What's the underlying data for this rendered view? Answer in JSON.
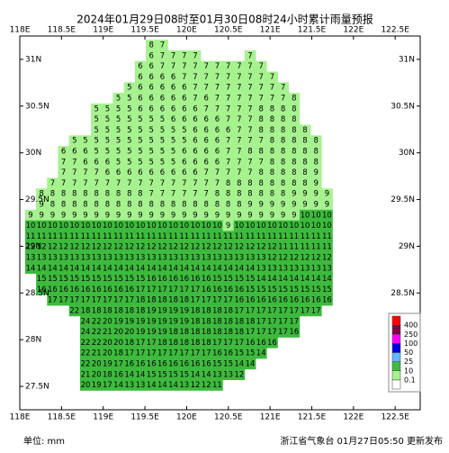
{
  "chart_data": {
    "type": "grid-map",
    "title": "2024年01月29日08时至01月30日08时24小时累计雨量预报",
    "xlim": [
      118,
      122.8
    ],
    "ylim": [
      27.25,
      31.25
    ],
    "xticks": [
      {
        "value": 118,
        "label": "118E"
      },
      {
        "value": 118.5,
        "label": "118.5E"
      },
      {
        "value": 119,
        "label": "119E"
      },
      {
        "value": 119.5,
        "label": "119.5E"
      },
      {
        "value": 120,
        "label": "120E"
      },
      {
        "value": 120.5,
        "label": "120.5E"
      },
      {
        "value": 121,
        "label": "121E"
      },
      {
        "value": 121.5,
        "label": "121.5E"
      },
      {
        "value": 122,
        "label": "122E"
      },
      {
        "value": 122.5,
        "label": "122.5E"
      }
    ],
    "yticks": [
      {
        "value": 27.5,
        "label": "27.5N"
      },
      {
        "value": 28,
        "label": "28N"
      },
      {
        "value": 28.5,
        "label": "28.5N"
      },
      {
        "value": 29,
        "label": "29N"
      },
      {
        "value": 29.5,
        "label": "29.5N"
      },
      {
        "value": 30,
        "label": "30N"
      },
      {
        "value": 30.5,
        "label": "30.5N"
      },
      {
        "value": 31,
        "label": "31N"
      }
    ],
    "rows": [
      [
        null,
        null,
        null,
        null,
        null,
        null,
        null,
        null,
        null,
        null,
        null,
        8,
        7
      ],
      [
        null,
        null,
        null,
        null,
        null,
        null,
        null,
        null,
        null,
        null,
        null,
        6,
        7,
        7,
        7,
        7,
        null,
        null,
        null,
        null,
        7
      ],
      [
        null,
        null,
        null,
        null,
        null,
        null,
        null,
        null,
        null,
        null,
        6,
        6,
        7,
        7,
        7,
        7,
        7,
        7,
        7,
        7,
        7,
        7
      ],
      [
        null,
        null,
        null,
        null,
        null,
        null,
        null,
        null,
        null,
        null,
        6,
        6,
        6,
        6,
        7,
        7,
        7,
        7,
        7,
        7,
        7,
        7,
        7
      ],
      [
        null,
        null,
        null,
        null,
        null,
        null,
        null,
        null,
        null,
        5,
        6,
        6,
        6,
        6,
        6,
        7,
        7,
        7,
        7,
        7,
        7,
        7,
        7,
        7
      ],
      [
        null,
        null,
        null,
        null,
        null,
        null,
        null,
        null,
        5,
        5,
        6,
        6,
        6,
        6,
        6,
        7,
        6,
        7,
        7,
        7,
        7,
        7,
        7,
        7,
        8
      ],
      [
        null,
        null,
        null,
        null,
        null,
        null,
        5,
        5,
        5,
        5,
        6,
        6,
        6,
        6,
        6,
        6,
        7,
        7,
        7,
        7,
        7,
        8,
        8,
        8,
        8
      ],
      [
        null,
        null,
        null,
        null,
        null,
        null,
        5,
        5,
        5,
        5,
        5,
        5,
        5,
        6,
        6,
        6,
        6,
        6,
        7,
        7,
        7,
        8,
        8,
        8,
        8
      ],
      [
        null,
        null,
        null,
        null,
        null,
        null,
        5,
        5,
        5,
        5,
        5,
        5,
        5,
        5,
        5,
        6,
        6,
        6,
        6,
        7,
        7,
        8,
        8,
        8,
        8,
        8
      ],
      [
        null,
        null,
        null,
        null,
        5,
        5,
        5,
        5,
        5,
        5,
        5,
        5,
        5,
        5,
        5,
        6,
        6,
        6,
        7,
        7,
        7,
        7,
        8,
        8,
        8,
        8,
        8
      ],
      [
        null,
        null,
        null,
        6,
        6,
        6,
        5,
        5,
        5,
        5,
        5,
        5,
        5,
        5,
        6,
        6,
        6,
        6,
        7,
        7,
        8,
        8,
        8,
        8,
        8,
        8,
        8
      ],
      [
        null,
        null,
        null,
        7,
        7,
        6,
        6,
        6,
        5,
        5,
        5,
        5,
        5,
        5,
        6,
        6,
        6,
        6,
        7,
        7,
        7,
        7,
        8,
        8,
        8,
        8,
        8
      ],
      [
        null,
        null,
        null,
        7,
        7,
        7,
        7,
        6,
        6,
        6,
        6,
        6,
        6,
        6,
        6,
        6,
        7,
        7,
        7,
        7,
        7,
        8,
        8,
        8,
        8,
        8,
        9
      ],
      [
        null,
        null,
        7,
        7,
        7,
        7,
        7,
        7,
        7,
        7,
        7,
        7,
        7,
        7,
        7,
        7,
        7,
        7,
        8,
        8,
        8,
        8,
        8,
        8,
        8,
        8,
        9
      ],
      [
        null,
        8,
        8,
        8,
        8,
        8,
        8,
        8,
        8,
        8,
        8,
        7,
        7,
        7,
        7,
        7,
        7,
        8,
        8,
        8,
        8,
        8,
        8,
        8,
        9,
        9,
        9,
        9
      ],
      [
        null,
        9,
        8,
        8,
        8,
        8,
        8,
        8,
        8,
        8,
        8,
        8,
        8,
        8,
        8,
        8,
        8,
        8,
        8,
        8,
        9,
        9,
        9,
        9,
        9,
        9,
        9,
        9
      ],
      [
        9,
        9,
        9,
        9,
        9,
        9,
        9,
        9,
        9,
        9,
        9,
        9,
        9,
        9,
        9,
        9,
        9,
        9,
        9,
        9,
        9,
        9,
        9,
        9,
        9,
        10,
        10,
        10
      ],
      [
        10,
        10,
        10,
        10,
        10,
        10,
        10,
        10,
        10,
        10,
        10,
        10,
        10,
        10,
        10,
        10,
        10,
        10,
        9,
        10,
        10,
        10,
        10,
        10,
        10,
        10,
        10,
        10
      ],
      [
        11,
        11,
        11,
        11,
        11,
        11,
        11,
        11,
        11,
        11,
        11,
        11,
        11,
        11,
        11,
        11,
        11,
        11,
        11,
        11,
        11,
        11,
        11,
        11,
        11,
        11,
        11,
        11
      ],
      [
        12,
        12,
        12,
        12,
        12,
        12,
        12,
        12,
        12,
        12,
        12,
        12,
        12,
        12,
        12,
        12,
        12,
        12,
        12,
        12,
        12,
        12,
        12,
        11,
        11,
        11,
        11,
        11
      ],
      [
        13,
        13,
        13,
        13,
        13,
        13,
        13,
        13,
        13,
        13,
        13,
        13,
        13,
        13,
        13,
        13,
        13,
        13,
        13,
        13,
        13,
        13,
        12,
        12,
        12,
        12,
        12,
        12
      ],
      [
        14,
        14,
        14,
        14,
        14,
        14,
        14,
        14,
        14,
        14,
        14,
        14,
        14,
        14,
        14,
        14,
        14,
        14,
        14,
        14,
        14,
        13,
        13,
        13,
        13,
        13,
        13,
        13
      ],
      [
        null,
        15,
        15,
        15,
        15,
        15,
        15,
        15,
        15,
        15,
        15,
        16,
        16,
        16,
        16,
        16,
        16,
        15,
        15,
        15,
        15,
        14,
        14,
        14,
        14,
        14,
        14,
        14
      ],
      [
        null,
        16,
        16,
        16,
        16,
        16,
        16,
        16,
        16,
        16,
        17,
        17,
        17,
        17,
        17,
        17,
        16,
        16,
        16,
        16,
        15,
        15,
        15,
        15,
        15,
        15,
        15,
        15
      ],
      [
        null,
        null,
        17,
        17,
        17,
        17,
        17,
        17,
        17,
        17,
        18,
        18,
        18,
        18,
        18,
        17,
        17,
        17,
        17,
        16,
        16,
        16,
        16,
        16,
        16,
        16,
        16,
        16
      ],
      [
        null,
        null,
        null,
        null,
        22,
        18,
        18,
        18,
        18,
        18,
        18,
        19,
        19,
        19,
        19,
        18,
        18,
        18,
        18,
        17,
        17,
        17,
        17,
        17,
        17,
        17,
        17
      ],
      [
        null,
        null,
        null,
        null,
        null,
        24,
        22,
        20,
        19,
        19,
        19,
        19,
        19,
        19,
        19,
        18,
        18,
        18,
        18,
        18,
        18,
        17,
        17,
        17,
        17
      ],
      [
        null,
        null,
        null,
        null,
        null,
        24,
        22,
        21,
        20,
        20,
        19,
        19,
        19,
        18,
        18,
        18,
        18,
        18,
        18,
        18,
        17,
        17,
        17,
        17,
        16
      ],
      [
        null,
        null,
        null,
        null,
        null,
        22,
        22,
        20,
        20,
        18,
        17,
        17,
        18,
        18,
        18,
        18,
        18,
        17,
        17,
        17,
        16,
        16,
        16
      ],
      [
        null,
        null,
        null,
        null,
        null,
        22,
        21,
        20,
        18,
        17,
        17,
        17,
        17,
        17,
        17,
        17,
        17,
        16,
        16,
        15,
        15,
        14
      ],
      [
        null,
        null,
        null,
        null,
        null,
        22,
        20,
        19,
        17,
        16,
        16,
        16,
        16,
        16,
        16,
        16,
        16,
        15,
        15,
        14,
        14
      ],
      [
        null,
        null,
        null,
        null,
        null,
        21,
        20,
        18,
        16,
        14,
        14,
        15,
        15,
        15,
        15,
        14,
        14,
        13,
        13,
        12
      ],
      [
        null,
        null,
        null,
        null,
        null,
        20,
        19,
        17,
        14,
        13,
        13,
        14,
        14,
        14,
        13,
        12,
        12,
        11
      ]
    ],
    "legend": {
      "levels": [
        0.1,
        10,
        25,
        50,
        100,
        250,
        400
      ],
      "colors": [
        "#ffffff",
        "#a6f28f",
        "#3dba3d",
        "#61b8ff",
        "#0000e1",
        "#fa00fa",
        "#800040",
        "#ff0000"
      ]
    },
    "unit": "单位: mm",
    "source": "浙江省气象台 01月27日05:50 更新发布"
  }
}
